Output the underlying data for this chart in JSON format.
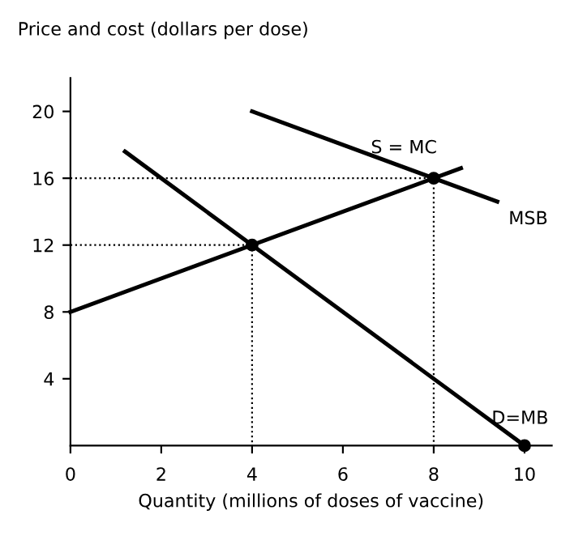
{
  "chart_data": {
    "type": "line",
    "xlabel": "Quantity (millions of doses of vaccine)",
    "ylabel": "Price and cost (dollars per dose)",
    "series": [
      {
        "color": "#000000",
        "x": [
          0,
          8.6
        ],
        "values": [
          8,
          16.6
        ],
        "line_style": "solid"
      },
      {
        "color": "#000000",
        "x": [
          1.2,
          10
        ],
        "values": [
          17.6,
          0
        ],
        "line_style": "solid"
      },
      {
        "color": "#000000",
        "x": [
          4,
          9.4
        ],
        "values": [
          20,
          14.6
        ],
        "line_style": "solid"
      },
      {
        "color": "#000000",
        "x": [
          0,
          8,
          8
        ],
        "values": [
          16,
          16,
          0
        ],
        "line_style": "dotted"
      },
      {
        "color": "#000000",
        "x": [
          0,
          4,
          4
        ],
        "values": [
          12,
          12,
          0
        ],
        "line_style": "dotted"
      },
      {
        "type": "scatter",
        "color": "#000000",
        "x": [
          4,
          8,
          10
        ],
        "values": [
          12,
          16,
          0
        ],
        "marker": "circle"
      }
    ],
    "annotations": [
      {
        "text": "S = MC",
        "x": 8.6,
        "y": 16.6
      },
      {
        "text": "MSB",
        "x": 9.4,
        "y": 14.6
      },
      {
        "text": "D=MB",
        "x": 10,
        "y": 0
      }
    ],
    "xlim": [
      0,
      10.6
    ],
    "xticks": [
      0,
      2,
      4,
      6,
      8,
      10
    ],
    "ylim": [
      0,
      22
    ],
    "yticks": [
      4,
      8,
      12,
      16,
      20
    ],
    "grid": false,
    "legend": false
  }
}
